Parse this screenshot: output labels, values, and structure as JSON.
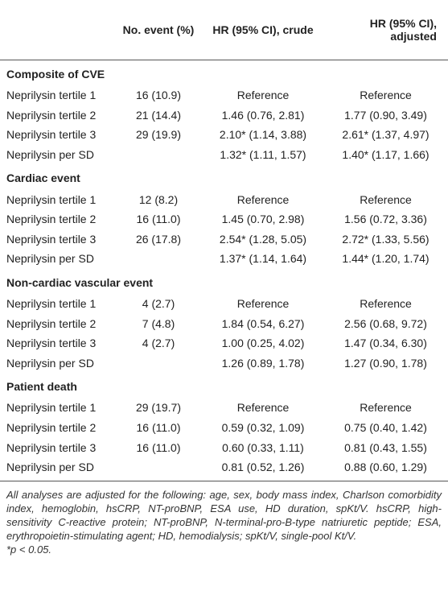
{
  "header": {
    "events": "No. event (%)",
    "crude": "HR (95% CI), crude",
    "adjusted": "HR (95% CI), adjusted"
  },
  "sections": [
    {
      "title": "Composite of CVE",
      "rows": [
        {
          "label": "Neprilysin tertile 1",
          "events": "16 (10.9)",
          "crude": "Reference",
          "adjusted": "Reference"
        },
        {
          "label": "Neprilysin tertile 2",
          "events": "21 (14.4)",
          "crude": "1.46 (0.76, 2.81)",
          "adjusted": "1.77 (0.90, 3.49)"
        },
        {
          "label": "Neprilysin tertile 3",
          "events": "29 (19.9)",
          "crude": "2.10* (1.14, 3.88)",
          "adjusted": "2.61* (1.37, 4.97)"
        },
        {
          "label": "Neprilysin per SD",
          "crude": "1.32* (1.11, 1.57)",
          "adjusted": "1.40* (1.17, 1.66)"
        }
      ]
    },
    {
      "title": "Cardiac event",
      "rows": [
        {
          "label": "Neprilysin tertile 1",
          "events": "12 (8.2)",
          "crude": "Reference",
          "adjusted": "Reference"
        },
        {
          "label": "Neprilysin tertile 2",
          "events": "16 (11.0)",
          "crude": "1.45 (0.70, 2.98)",
          "adjusted": "1.56 (0.72, 3.36)"
        },
        {
          "label": "Neprilysin tertile 3",
          "events": "26 (17.8)",
          "crude": "2.54* (1.28, 5.05)",
          "adjusted": "2.72* (1.33, 5.56)"
        },
        {
          "label": "Neprilysin per SD",
          "crude": "1.37* (1.14, 1.64)",
          "adjusted": "1.44* (1.20, 1.74)"
        }
      ]
    },
    {
      "title": "Non-cardiac vascular event",
      "rows": [
        {
          "label": "Neprilysin tertile 1",
          "events": "4 (2.7)",
          "crude": "Reference",
          "adjusted": "Reference"
        },
        {
          "label": "Neprilysin tertile 2",
          "events": "7 (4.8)",
          "crude": "1.84 (0.54, 6.27)",
          "adjusted": "2.56 (0.68, 9.72)"
        },
        {
          "label": "Neprilysin tertile 3",
          "events": "4 (2.7)",
          "crude": "1.00 (0.25, 4.02)",
          "adjusted": "1.47 (0.34, 6.30)"
        },
        {
          "label": "Neprilysin per SD",
          "crude": "1.26 (0.89, 1.78)",
          "adjusted": "1.27 (0.90, 1.78)"
        }
      ]
    },
    {
      "title": "Patient death",
      "rows": [
        {
          "label": "Neprilysin tertile 1",
          "events": "29 (19.7)",
          "crude": "Reference",
          "adjusted": "Reference"
        },
        {
          "label": "Neprilysin tertile 2",
          "events": "16 (11.0)",
          "crude": "0.59 (0.32, 1.09)",
          "adjusted": "0.75 (0.40, 1.42)"
        },
        {
          "label": "Neprilysin tertile 3",
          "events": "16 (11.0)",
          "crude": "0.60 (0.33, 1.11)",
          "adjusted": "0.81 (0.43, 1.55)"
        },
        {
          "label": "Neprilysin per SD",
          "crude": "0.81 (0.52, 1.26)",
          "adjusted": "0.88 (0.60, 1.29)"
        }
      ]
    }
  ],
  "footnotes": [
    "All analyses are adjusted for the following: age, sex, body mass index, Charlson comorbidity index, hemoglobin, hsCRP, NT-proBNP, ESA use, HD duration, spKt/V. hsCRP, high-sensitivity C-reactive protein; NT-proBNP, N-terminal-pro-B-type natriuretic peptide; ESA, erythropoietin-stimulating agent; HD, hemodialysis; spKt/V, single-pool Kt/V.",
    "*p < 0.05."
  ]
}
